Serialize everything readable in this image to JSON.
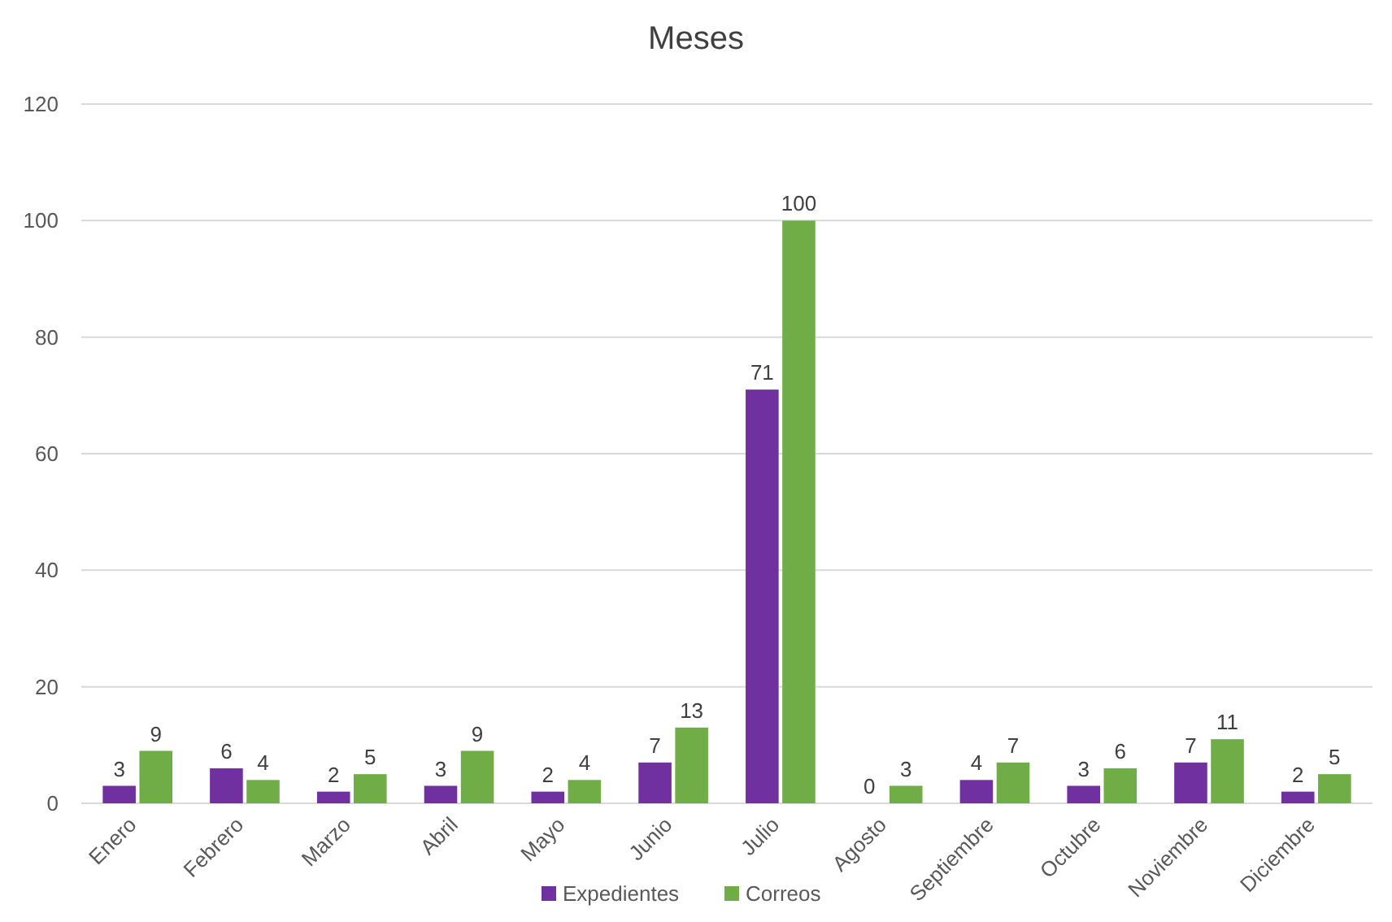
{
  "chart_data": {
    "type": "bar",
    "title": "Meses",
    "categories": [
      "Enero",
      "Febrero",
      "Marzo",
      "Abril",
      "Mayo",
      "Junio",
      "Julio",
      "Agosto",
      "Septiembre",
      "Octubre",
      "Noviembre",
      "Diciembre"
    ],
    "series": [
      {
        "name": "Expedientes",
        "color": "#7030a0",
        "values": [
          3,
          6,
          2,
          3,
          2,
          7,
          71,
          0,
          4,
          3,
          7,
          2
        ]
      },
      {
        "name": "Correos",
        "color": "#70ad47",
        "values": [
          9,
          4,
          5,
          9,
          4,
          13,
          100,
          3,
          7,
          6,
          11,
          5
        ]
      }
    ],
    "ylim": [
      0,
      120
    ],
    "yticks": [
      0,
      20,
      40,
      60,
      80,
      100,
      120
    ],
    "grid": "y",
    "legend": "bottom",
    "data_labels": true
  }
}
